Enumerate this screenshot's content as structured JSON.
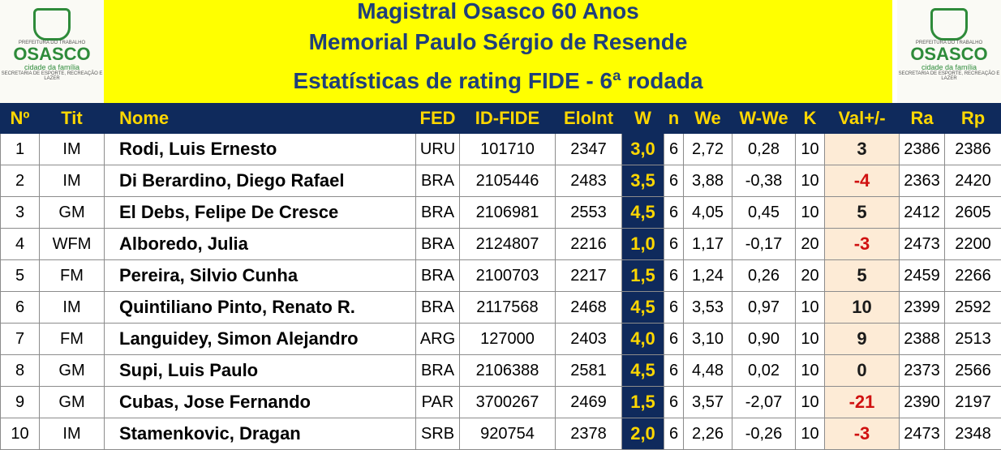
{
  "header": {
    "title_lines": [
      "Magistral Osasco 60 Anos",
      "Memorial Paulo Sérgio de Resende",
      "Estatísticas de rating FIDE - 6ª rodada"
    ],
    "logo": {
      "top": "PREFEITURA DO TRABALHO",
      "name": "OSASCO",
      "tagline": "cidade da família",
      "bottom": "SECRETARIA DE ESPORTE, RECREAÇÃO E LAZER"
    }
  },
  "table": {
    "columns": [
      "Nº",
      "Tit",
      "Nome",
      "FED",
      "ID-FIDE",
      "EloInt",
      "W",
      "n",
      "We",
      "W-We",
      "K",
      "Val+/-",
      "Ra",
      "Rp"
    ],
    "rows": [
      [
        "1",
        "IM",
        "Rodi, Luis Ernesto",
        "URU",
        "101710",
        "2347",
        "3,0",
        "6",
        "2,72",
        "0,28",
        "10",
        "3",
        "2386",
        "2386"
      ],
      [
        "2",
        "IM",
        "Di Berardino, Diego Rafael",
        "BRA",
        "2105446",
        "2483",
        "3,5",
        "6",
        "3,88",
        "-0,38",
        "10",
        "-4",
        "2363",
        "2420"
      ],
      [
        "3",
        "GM",
        "El Debs, Felipe De Cresce",
        "BRA",
        "2106981",
        "2553",
        "4,5",
        "6",
        "4,05",
        "0,45",
        "10",
        "5",
        "2412",
        "2605"
      ],
      [
        "4",
        "WFM",
        "Alboredo, Julia",
        "BRA",
        "2124807",
        "2216",
        "1,0",
        "6",
        "1,17",
        "-0,17",
        "20",
        "-3",
        "2473",
        "2200"
      ],
      [
        "5",
        "FM",
        "Pereira, Silvio Cunha",
        "BRA",
        "2100703",
        "2217",
        "1,5",
        "6",
        "1,24",
        "0,26",
        "20",
        "5",
        "2459",
        "2266"
      ],
      [
        "6",
        "IM",
        "Quintiliano Pinto, Renato R.",
        "BRA",
        "2117568",
        "2468",
        "4,5",
        "6",
        "3,53",
        "0,97",
        "10",
        "10",
        "2399",
        "2592"
      ],
      [
        "7",
        "FM",
        "Languidey, Simon Alejandro",
        "ARG",
        "127000",
        "2403",
        "4,0",
        "6",
        "3,10",
        "0,90",
        "10",
        "9",
        "2388",
        "2513"
      ],
      [
        "8",
        "GM",
        "Supi, Luis Paulo",
        "BRA",
        "2106388",
        "2581",
        "4,5",
        "6",
        "4,48",
        "0,02",
        "10",
        "0",
        "2373",
        "2566"
      ],
      [
        "9",
        "GM",
        "Cubas, Jose Fernando",
        "PAR",
        "3700267",
        "2469",
        "1,5",
        "6",
        "3,57",
        "-2,07",
        "10",
        "-21",
        "2390",
        "2197"
      ],
      [
        "10",
        "IM",
        "Stamenkovic, Dragan",
        "SRB",
        "920754",
        "2378",
        "2,0",
        "6",
        "2,26",
        "-0,26",
        "10",
        "-3",
        "2473",
        "2348"
      ]
    ]
  }
}
